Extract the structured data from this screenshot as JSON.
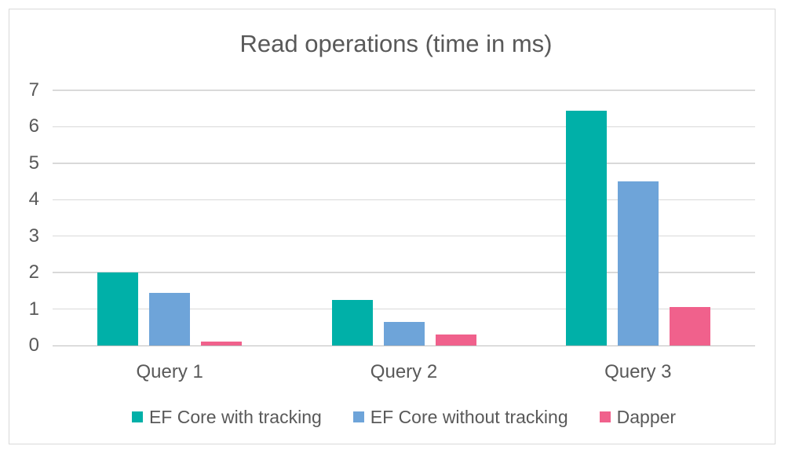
{
  "chart_data": {
    "type": "bar",
    "title": "Read operations (time in ms)",
    "categories": [
      "Query 1",
      "Query 2",
      "Query 3"
    ],
    "series": [
      {
        "name": "EF Core with tracking",
        "color": "#00B0A8",
        "values": [
          2.0,
          1.25,
          6.45
        ]
      },
      {
        "name": "EF Core without tracking",
        "color": "#6EA4D9",
        "values": [
          1.45,
          0.65,
          4.5
        ]
      },
      {
        "name": "Dapper",
        "color": "#F0618C",
        "values": [
          0.1,
          0.3,
          1.05
        ]
      }
    ],
    "xlabel": "",
    "ylabel": "",
    "ylim": [
      0,
      7
    ],
    "yticks": [
      0,
      1,
      2,
      3,
      4,
      5,
      6,
      7
    ],
    "grid": "horizontal",
    "legend_position": "bottom"
  },
  "colors": {
    "background": "#FFFFFF",
    "frame_border": "#D9D9D9",
    "gridline": "#D9D9D9",
    "axis_line": "#BFBFBF",
    "text": "#595959"
  }
}
